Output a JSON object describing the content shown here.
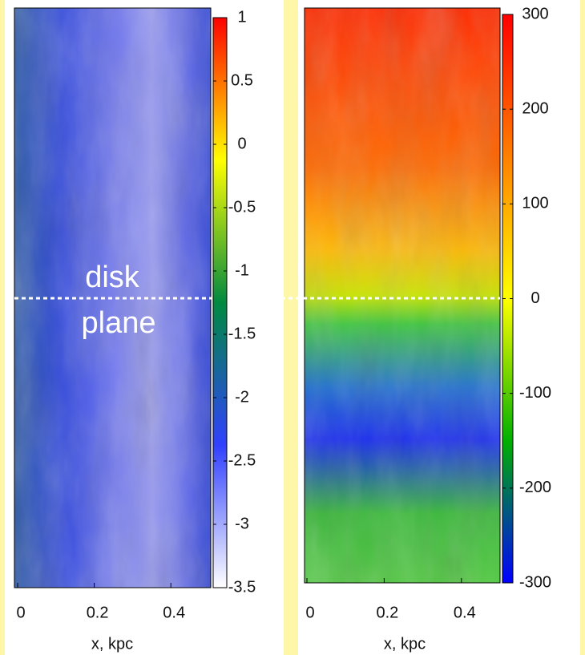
{
  "chart_data": [
    {
      "type": "heatmap",
      "xlabel": "x, kpc",
      "xlim": [
        0,
        0.5
      ],
      "xticks": [
        0,
        0.2,
        0.4
      ],
      "clim": [
        -3.5,
        1
      ],
      "cticks": [
        1,
        0.5,
        0,
        -0.5,
        -1,
        -1.5,
        -2,
        -2.5,
        -3,
        -3.5
      ],
      "colorscale": [
        "#ffffff",
        "#3040ff",
        "#008a40",
        "#ffff00",
        "#ff0000"
      ],
      "annotation_lines": [
        "disk",
        "plane"
      ]
    },
    {
      "type": "heatmap",
      "xlabel": "x, kpc",
      "xlim": [
        0,
        0.5
      ],
      "xticks": [
        0,
        0.2,
        0.4
      ],
      "clim": [
        -300,
        300
      ],
      "cticks": [
        300,
        200,
        100,
        0,
        -100,
        -200,
        -300
      ],
      "colorscale": [
        "#0000ff",
        "#00b000",
        "#ffff00",
        "#ff8000",
        "#ff0000"
      ]
    }
  ]
}
